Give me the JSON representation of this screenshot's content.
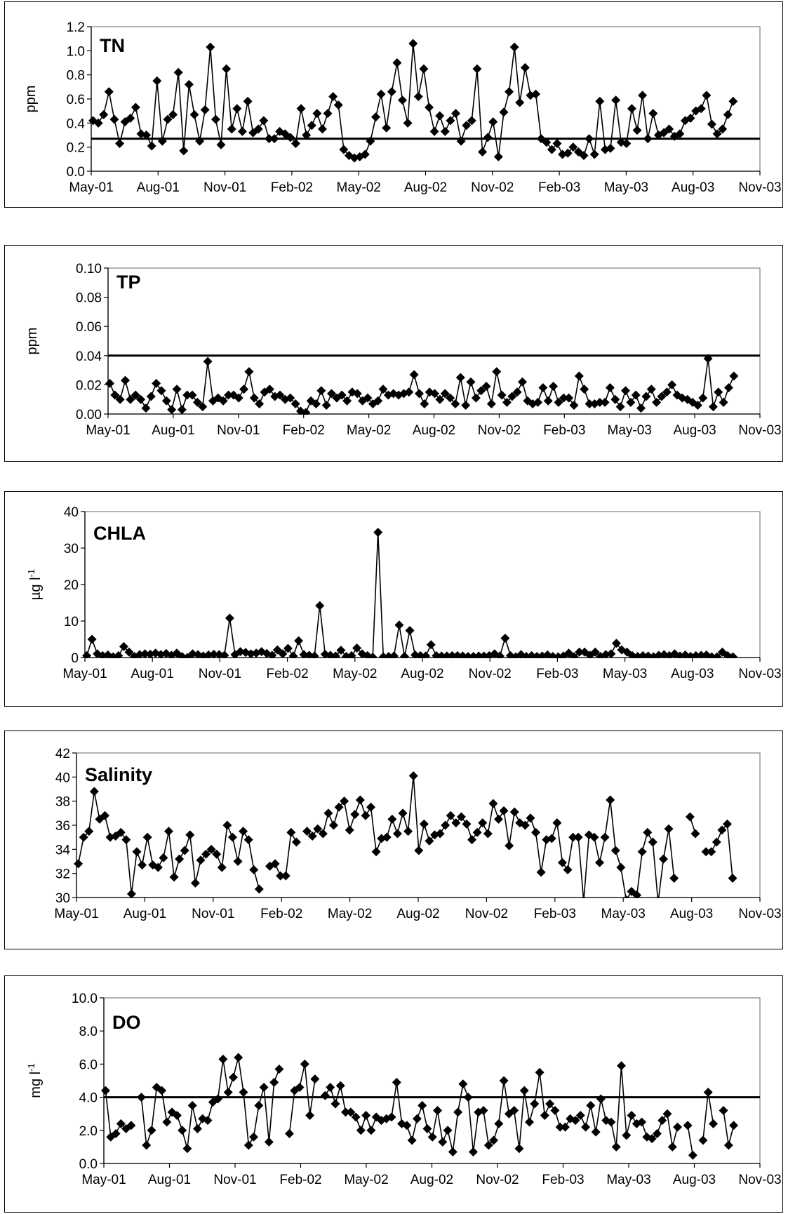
{
  "chart_data": [
    {
      "type": "line",
      "title": "TN",
      "ylabel": "ppm",
      "ylim": [
        0,
        1.2
      ],
      "yticks": [
        "0.0",
        "0.2",
        "0.4",
        "0.6",
        "0.8",
        "1.0",
        "1.2"
      ],
      "xticks": [
        "May-01",
        "Aug-01",
        "Nov-01",
        "Feb-02",
        "May-02",
        "Aug-02",
        "Nov-02",
        "Feb-03",
        "May-03",
        "Aug-03",
        "Nov-03"
      ],
      "xlim_months": [
        0,
        30
      ],
      "reference_line": 0.27,
      "series": [
        {
          "values": [
            0.42,
            0.4,
            0.47,
            0.66,
            0.43,
            0.23,
            0.41,
            0.44,
            0.53,
            0.31,
            0.3,
            0.21,
            0.75,
            0.25,
            0.43,
            0.47,
            0.82,
            0.17,
            0.72,
            0.47,
            0.25,
            0.51,
            1.03,
            0.43,
            0.22,
            0.85,
            0.35,
            0.52,
            0.33,
            0.58,
            0.32,
            0.35,
            0.42,
            0.27,
            0.27,
            0.33,
            0.31,
            0.28,
            0.23,
            0.52,
            0.3,
            0.38,
            0.48,
            0.35,
            0.48,
            0.62,
            0.55,
            0.18,
            0.13,
            0.11,
            0.12,
            0.14,
            0.25,
            0.45,
            0.64,
            0.36,
            0.66,
            0.9,
            0.59,
            0.4,
            1.06,
            0.62,
            0.85,
            0.53,
            0.33,
            0.46,
            0.33,
            0.42,
            0.48,
            0.25,
            0.38,
            0.42,
            0.85,
            0.16,
            0.28,
            0.41,
            0.12,
            0.49,
            0.66,
            1.03,
            0.57,
            0.86,
            0.63,
            0.64,
            0.27,
            0.24,
            0.18,
            0.23,
            0.14,
            0.15,
            0.2,
            0.16,
            0.13,
            0.27,
            0.14,
            0.58,
            0.18,
            0.19,
            0.59,
            0.24,
            0.23,
            0.52,
            0.34,
            0.63,
            0.27,
            0.48,
            0.3,
            0.32,
            0.35,
            0.29,
            0.31,
            0.42,
            0.44,
            0.5,
            0.52,
            0.63,
            0.39,
            0.31,
            0.35,
            0.47,
            0.58
          ]
        }
      ]
    },
    {
      "type": "line",
      "title": "TP",
      "ylabel": "ppm",
      "ylim": [
        0,
        0.1
      ],
      "yticks": [
        "0.00",
        "0.02",
        "0.04",
        "0.06",
        "0.08",
        "0.10"
      ],
      "xticks": [
        "May-01",
        "Aug-01",
        "Nov-01",
        "Feb-02",
        "May-02",
        "Aug-02",
        "Nov-02",
        "Feb-03",
        "May-03",
        "Aug-03",
        "Nov-03"
      ],
      "xlim_months": [
        0,
        30
      ],
      "reference_line": 0.04,
      "series": [
        {
          "values": [
            0.021,
            0.013,
            0.01,
            0.023,
            0.01,
            0.013,
            0.01,
            0.004,
            0.012,
            0.021,
            0.016,
            0.009,
            0.003,
            0.017,
            0.003,
            0.013,
            0.013,
            0.008,
            0.005,
            0.036,
            0.009,
            0.011,
            0.009,
            0.013,
            0.013,
            0.011,
            0.017,
            0.029,
            0.011,
            0.007,
            0.015,
            0.017,
            0.012,
            0.013,
            0.01,
            0.011,
            0.007,
            0.002,
            0.001,
            0.009,
            0.007,
            0.016,
            0.006,
            0.014,
            0.011,
            0.013,
            0.009,
            0.015,
            0.014,
            0.009,
            0.011,
            0.007,
            0.009,
            0.017,
            0.013,
            0.014,
            0.013,
            0.014,
            0.015,
            0.027,
            0.014,
            0.007,
            0.015,
            0.014,
            0.01,
            0.014,
            0.011,
            0.007,
            0.025,
            0.006,
            0.022,
            0.011,
            0.016,
            0.019,
            0.007,
            0.029,
            0.013,
            0.008,
            0.012,
            0.015,
            0.022,
            0.009,
            0.007,
            0.008,
            0.018,
            0.009,
            0.019,
            0.008,
            0.011,
            0.011,
            0.006,
            0.026,
            0.017,
            0.007,
            0.007,
            0.008,
            0.008,
            0.018,
            0.01,
            0.005,
            0.016,
            0.008,
            0.013,
            0.004,
            0.012,
            0.017,
            0.008,
            0.012,
            0.015,
            0.02,
            0.013,
            0.011,
            0.01,
            0.008,
            0.006,
            0.011,
            0.038,
            0.005,
            0.015,
            0.008,
            0.018,
            0.026
          ]
        }
      ]
    },
    {
      "type": "line",
      "title": "CHLA",
      "ylabel": "µg l-1",
      "ylim": [
        0,
        40
      ],
      "yticks": [
        "0",
        "10",
        "20",
        "30",
        "40"
      ],
      "xticks": [
        "May-01",
        "Aug-01",
        "Nov-01",
        "Feb-02",
        "May-02",
        "Aug-02",
        "Nov-02",
        "Feb-03",
        "May-03",
        "Aug-03",
        "Nov-03"
      ],
      "xlim_months": [
        0,
        30
      ],
      "series": [
        {
          "values": [
            0.5,
            5.0,
            1.0,
            0.5,
            0.7,
            0.2,
            0.5,
            3.0,
            1.5,
            0.3,
            0.8,
            1.0,
            0.9,
            1.2,
            0.8,
            1.1,
            0.6,
            1.2,
            0.3,
            0,
            1.0,
            0.8,
            0.4,
            0.7,
            0.9,
            0.8,
            0.6,
            10.8,
            0.8,
            1.6,
            1.4,
            1.0,
            1.2,
            1.6,
            1.1,
            0.6,
            2.1,
            1.0,
            2.5,
            0.4,
            4.6,
            0.8,
            0.6,
            0.4,
            14.2,
            0.9,
            0.6,
            0.4,
            2.0,
            0.3,
            0.5,
            2.6,
            1.0,
            0.5,
            0.1,
            34.3,
            0.2,
            0.3,
            0.4,
            8.9,
            0.3,
            7.4,
            0.7,
            0.5,
            0.4,
            3.5,
            0.5,
            0.4,
            0.4,
            0.5,
            0.5,
            0.4,
            0.3,
            0.3,
            0.4,
            0.4,
            0.5,
            1.0,
            0.4,
            5.3,
            0.5,
            0.2,
            0.8,
            0.3,
            0.5,
            0.3,
            0.4,
            0.7,
            0.3,
            0.2,
            0.4,
            1.2,
            0.2,
            1.5,
            1.5,
            0.6,
            1.5,
            0.3,
            0.8,
            1.0,
            3.9,
            2.1,
            1.5,
            0.5,
            0.3,
            0.5,
            0.4,
            0.2,
            0.6,
            0.8,
            0.5,
            1.0,
            0.4,
            0.7,
            0.3,
            0.5,
            0.6,
            0.7,
            0.2,
            0.2,
            1.5,
            0.5,
            0.2
          ]
        }
      ]
    },
    {
      "type": "line",
      "title": "Salinity",
      "ylabel": "",
      "ylim": [
        30,
        42
      ],
      "yticks": [
        "30",
        "32",
        "34",
        "36",
        "38",
        "40",
        "42"
      ],
      "xticks": [
        "May-01",
        "Aug-01",
        "Nov-01",
        "Feb-02",
        "May-02",
        "Aug-02",
        "Nov-02",
        "Feb-03",
        "May-03",
        "Aug-03",
        "Nov-03"
      ],
      "xlim_months": [
        0,
        30
      ],
      "series": [
        {
          "values": [
            32.8,
            35.0,
            35.5,
            38.8,
            36.5,
            36.8,
            35.0,
            35.1,
            35.4,
            34.8,
            30.3,
            33.8,
            32.7,
            35.0,
            32.7,
            32.5,
            33.3,
            35.5,
            31.7,
            33.2,
            33.9,
            35.2,
            31.2,
            33.1,
            33.6,
            34.0,
            33.6,
            32.5,
            36.0,
            35.0,
            33.0,
            35.5,
            34.8,
            32.3,
            30.7,
            null,
            32.6,
            32.8,
            31.8,
            31.8,
            35.4,
            34.6,
            null,
            35.5,
            35.1,
            35.7,
            35.3,
            37.0,
            36.0,
            37.5,
            38.0,
            35.6,
            36.9,
            38.1,
            36.8,
            37.5,
            33.8,
            34.9,
            35.0,
            36.5,
            35.3,
            37.0,
            35.5,
            40.1,
            33.9,
            36.1,
            34.7,
            35.2,
            35.3,
            36.0,
            36.8,
            36.2,
            36.7,
            36.1,
            34.8,
            35.4,
            36.2,
            35.3,
            37.8,
            36.5,
            37.2,
            34.3,
            37.1,
            36.2,
            36.0,
            36.6,
            35.4,
            32.1,
            34.8,
            34.9,
            36.2,
            32.9,
            32.3,
            35.0,
            35.0,
            29.7,
            35.2,
            35.0,
            32.9,
            35.0,
            38.1,
            33.9,
            32.5,
            29.8,
            30.5,
            30.2,
            33.8,
            35.4,
            34.6,
            29.6,
            33.2,
            35.7,
            31.6,
            null,
            null,
            36.7,
            35.3,
            null,
            33.8,
            33.8,
            34.6,
            35.6,
            36.1,
            31.6
          ]
        }
      ]
    },
    {
      "type": "line",
      "title": "DO",
      "ylabel": "mg l-1",
      "ylim": [
        0,
        10
      ],
      "yticks": [
        "0.0",
        "2.0",
        "4.0",
        "6.0",
        "8.0",
        "10.0"
      ],
      "xticks": [
        "May-01",
        "Aug-01",
        "Nov-01",
        "Feb-02",
        "May-02",
        "Aug-02",
        "Nov-02",
        "Feb-03",
        "May-03",
        "Aug-03",
        "Nov-03"
      ],
      "xlim_months": [
        0,
        30
      ],
      "reference_line": 4.0,
      "series": [
        {
          "values": [
            4.4,
            1.6,
            1.8,
            2.4,
            2.1,
            2.3,
            null,
            4.0,
            1.1,
            2.0,
            4.6,
            4.4,
            2.5,
            3.1,
            2.9,
            2.0,
            0.9,
            3.5,
            2.1,
            2.7,
            2.6,
            3.7,
            3.9,
            6.3,
            4.3,
            5.2,
            6.4,
            4.3,
            1.1,
            1.6,
            3.5,
            4.6,
            1.3,
            4.9,
            5.7,
            null,
            1.8,
            4.4,
            4.6,
            6.0,
            2.9,
            5.1,
            null,
            4.1,
            4.6,
            3.6,
            4.7,
            3.1,
            3.1,
            2.8,
            2.0,
            2.9,
            2.0,
            2.8,
            2.6,
            2.7,
            2.8,
            4.9,
            2.4,
            2.3,
            1.4,
            2.7,
            3.5,
            2.1,
            1.6,
            3.2,
            1.3,
            2.0,
            0.7,
            3.1,
            4.8,
            4.0,
            0.7,
            3.1,
            3.2,
            1.1,
            1.4,
            2.4,
            5.0,
            3.0,
            3.2,
            0.9,
            4.4,
            2.5,
            3.6,
            5.5,
            2.9,
            3.6,
            3.2,
            2.2,
            2.2,
            2.7,
            2.6,
            2.9,
            2.2,
            3.5,
            1.9,
            3.9,
            2.6,
            2.5,
            1.0,
            5.9,
            1.7,
            2.9,
            2.4,
            2.5,
            1.6,
            1.5,
            1.8,
            2.6,
            3.0,
            1.0,
            2.2,
            null,
            2.3,
            0.5,
            null,
            1.4,
            4.3,
            2.4,
            null,
            3.2,
            1.1,
            2.3
          ]
        }
      ]
    }
  ]
}
